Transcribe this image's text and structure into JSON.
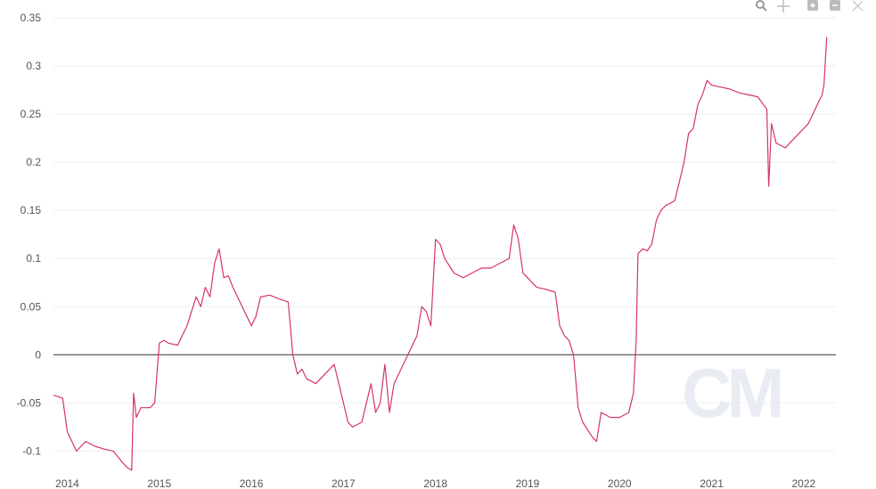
{
  "toolbar": {
    "icons": [
      "zoom-icon",
      "pan-icon",
      "zoom-in-icon",
      "zoom-out-icon",
      "reset-icon"
    ]
  },
  "watermark_text": "CM",
  "colors": {
    "series": "#d6336c",
    "zero_line": "#333333",
    "grid": "#eeeeee"
  },
  "chart_data": {
    "type": "line",
    "title": "",
    "xlabel": "",
    "ylabel": "",
    "xlim": [
      2013.85,
      2022.35
    ],
    "ylim": [
      -0.12,
      0.35
    ],
    "x_ticks": [
      {
        "value": 2014,
        "label": "2014"
      },
      {
        "value": 2015,
        "label": "2015"
      },
      {
        "value": 2016,
        "label": "2016"
      },
      {
        "value": 2017,
        "label": "2017"
      },
      {
        "value": 2018,
        "label": "2018"
      },
      {
        "value": 2019,
        "label": "2019"
      },
      {
        "value": 2020,
        "label": "2020"
      },
      {
        "value": 2021,
        "label": "2021"
      },
      {
        "value": 2022,
        "label": "2022"
      }
    ],
    "y_ticks": [
      {
        "value": 0.35,
        "label": "0.35"
      },
      {
        "value": 0.3,
        "label": "0.3"
      },
      {
        "value": 0.25,
        "label": "0.25"
      },
      {
        "value": 0.2,
        "label": "0.2"
      },
      {
        "value": 0.15,
        "label": "0.15"
      },
      {
        "value": 0.1,
        "label": "0.1"
      },
      {
        "value": 0.05,
        "label": "0.05"
      },
      {
        "value": 0,
        "label": "0"
      },
      {
        "value": -0.05,
        "label": "-0.05"
      },
      {
        "value": -0.1,
        "label": "-0.1"
      }
    ],
    "grid": true,
    "series": [
      {
        "x": [
          2013.85,
          2013.95,
          2014.0,
          2014.1,
          2014.15,
          2014.2,
          2014.3,
          2014.4,
          2014.5,
          2014.6,
          2014.65,
          2014.7,
          2014.72,
          2014.75,
          2014.8,
          2014.9,
          2014.95,
          2015.0,
          2015.05,
          2015.1,
          2015.2,
          2015.3,
          2015.4,
          2015.45,
          2015.5,
          2015.55,
          2015.6,
          2015.65,
          2015.7,
          2015.75,
          2015.8,
          2015.9,
          2016.0,
          2016.05,
          2016.1,
          2016.2,
          2016.3,
          2016.4,
          2016.45,
          2016.5,
          2016.55,
          2016.6,
          2016.7,
          2016.8,
          2016.9,
          2017.0,
          2017.05,
          2017.1,
          2017.2,
          2017.3,
          2017.35,
          2017.4,
          2017.45,
          2017.5,
          2017.55,
          2017.6,
          2017.7,
          2017.8,
          2017.85,
          2017.9,
          2017.95,
          2018.0,
          2018.05,
          2018.1,
          2018.2,
          2018.3,
          2018.4,
          2018.5,
          2018.6,
          2018.7,
          2018.8,
          2018.85,
          2018.9,
          2018.95,
          2019.0,
          2019.05,
          2019.1,
          2019.2,
          2019.3,
          2019.35,
          2019.4,
          2019.45,
          2019.5,
          2019.55,
          2019.6,
          2019.7,
          2019.75,
          2019.8,
          2019.9,
          2020.0,
          2020.1,
          2020.15,
          2020.18,
          2020.2,
          2020.25,
          2020.3,
          2020.35,
          2020.4,
          2020.45,
          2020.5,
          2020.6,
          2020.7,
          2020.75,
          2020.8,
          2020.85,
          2020.9,
          2020.95,
          2021.0,
          2021.1,
          2021.2,
          2021.3,
          2021.4,
          2021.5,
          2021.6,
          2021.62,
          2021.65,
          2021.7,
          2021.8,
          2021.9,
          2022.0,
          2022.05,
          2022.1,
          2022.15,
          2022.2,
          2022.22,
          2022.25
        ],
        "y": [
          -0.042,
          -0.045,
          -0.08,
          -0.1,
          -0.095,
          -0.09,
          -0.095,
          -0.098,
          -0.1,
          -0.112,
          -0.117,
          -0.12,
          -0.04,
          -0.065,
          -0.055,
          -0.055,
          -0.05,
          0.012,
          0.015,
          0.012,
          0.01,
          0.03,
          0.06,
          0.05,
          0.07,
          0.06,
          0.095,
          0.11,
          0.08,
          0.082,
          0.07,
          0.05,
          0.03,
          0.04,
          0.06,
          0.062,
          0.058,
          0.055,
          0.0,
          -0.02,
          -0.015,
          -0.025,
          -0.03,
          -0.02,
          -0.01,
          -0.05,
          -0.07,
          -0.075,
          -0.07,
          -0.03,
          -0.06,
          -0.05,
          -0.01,
          -0.06,
          -0.03,
          -0.02,
          0.0,
          0.02,
          0.05,
          0.045,
          0.03,
          0.12,
          0.115,
          0.1,
          0.085,
          0.08,
          0.085,
          0.09,
          0.09,
          0.095,
          0.1,
          0.135,
          0.12,
          0.085,
          0.08,
          0.075,
          0.07,
          0.068,
          0.065,
          0.03,
          0.02,
          0.015,
          0.0,
          -0.055,
          -0.07,
          -0.085,
          -0.09,
          -0.06,
          -0.065,
          -0.065,
          -0.06,
          -0.04,
          0.015,
          0.105,
          0.11,
          0.108,
          0.115,
          0.14,
          0.15,
          0.155,
          0.16,
          0.2,
          0.23,
          0.235,
          0.26,
          0.27,
          0.285,
          0.28,
          0.278,
          0.276,
          0.272,
          0.27,
          0.268,
          0.255,
          0.175,
          0.24,
          0.22,
          0.215,
          0.225,
          0.235,
          0.24,
          0.25,
          0.26,
          0.27,
          0.28,
          0.33
        ]
      }
    ]
  }
}
